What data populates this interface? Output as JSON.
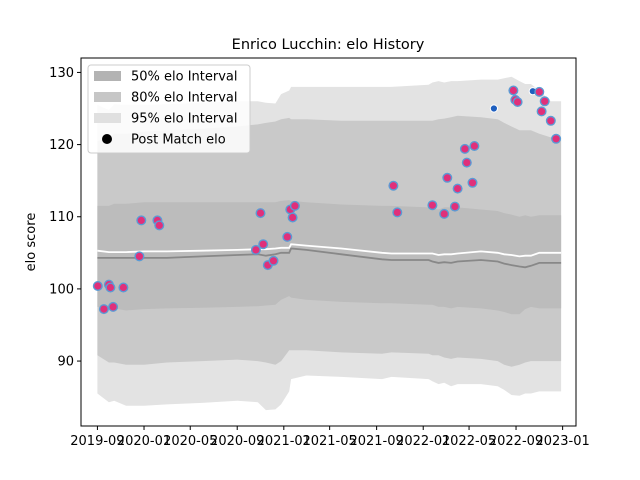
{
  "chart_data": {
    "type": "scatter",
    "title": "Enrico Lucchin: elo History",
    "xlabel": "",
    "ylabel": "elo score",
    "xlim": [
      "2019-07-20",
      "2023-02-05"
    ],
    "ylim": [
      81,
      132
    ],
    "x_ticks": [
      "2019-09",
      "2020-01",
      "2020-05",
      "2020-09",
      "2021-01",
      "2021-05",
      "2021-09",
      "2022-01",
      "2022-05",
      "2022-09",
      "2023-01"
    ],
    "y_ticks": [
      90,
      100,
      110,
      120,
      130
    ],
    "legend_position": "top-left",
    "legend": [
      {
        "label": "50% elo Interval",
        "color": "#b3b3b3",
        "kind": "patch"
      },
      {
        "label": "80% elo Interval",
        "color": "#c6c6c6",
        "kind": "patch"
      },
      {
        "label": "95% elo Interval",
        "color": "#e0e0e0",
        "kind": "patch"
      },
      {
        "label": "Post Match elo",
        "color": "#000000",
        "kind": "marker"
      }
    ],
    "colors": {
      "band95": "#e3e3e3",
      "band80": "#c9c9c9",
      "band50": "#bcbcbc",
      "median": "#888888",
      "mean": "#ffffff",
      "marker_face": "#e0307a",
      "marker_edge": "#5b9bd5",
      "marker_face_alt": "#1f5fbf"
    },
    "bands": {
      "dates": [
        "2019-09-01",
        "2019-10-01",
        "2019-10-15",
        "2019-11-15",
        "2020-01-01",
        "2020-03-01",
        "2020-06-01",
        "2020-09-01",
        "2020-10-25",
        "2020-11-15",
        "2020-12-10",
        "2020-12-25",
        "2021-01-15",
        "2021-01-20",
        "2021-03-01",
        "2021-06-01",
        "2021-09-15",
        "2021-10-10",
        "2022-01-15",
        "2022-01-25",
        "2022-02-10",
        "2022-02-25",
        "2022-03-15",
        "2022-04-01",
        "2022-06-01",
        "2022-07-15",
        "2022-08-01",
        "2022-08-20",
        "2022-09-10",
        "2022-09-25",
        "2022-10-10",
        "2022-11-01",
        "2022-12-01",
        "2022-12-28"
      ],
      "p95_low": [
        85.5,
        84.3,
        84.5,
        83.8,
        83.8,
        84.0,
        84.2,
        84.5,
        84.3,
        83.2,
        83.3,
        84.0,
        85.8,
        87.5,
        88.0,
        87.8,
        87.5,
        87.8,
        87.5,
        87.2,
        86.8,
        87.0,
        86.5,
        86.8,
        86.8,
        86.5,
        86.0,
        85.3,
        85.2,
        85.5,
        85.5,
        85.8,
        85.8,
        85.8
      ],
      "p95_high": [
        125.5,
        124.8,
        125.6,
        125.5,
        125.5,
        125.6,
        125.8,
        126.0,
        126.0,
        125.8,
        125.7,
        127.0,
        127.5,
        128.0,
        128.0,
        128.0,
        128.0,
        128.0,
        128.3,
        128.6,
        128.8,
        128.6,
        128.8,
        128.8,
        129.0,
        129.0,
        129.2,
        129.4,
        128.8,
        128.4,
        128.4,
        127.5,
        126.0,
        126.0
      ],
      "p80_low": [
        90.8,
        89.8,
        89.8,
        89.5,
        89.5,
        89.8,
        90.0,
        90.2,
        90.0,
        89.8,
        89.5,
        90.0,
        91.5,
        91.5,
        91.5,
        91.2,
        91.0,
        91.2,
        91.0,
        90.8,
        90.8,
        90.5,
        90.3,
        90.5,
        90.3,
        90.0,
        89.5,
        89.2,
        89.5,
        89.8,
        90.0,
        90.0,
        90.0,
        90.0
      ],
      "p80_high": [
        120.5,
        120.8,
        121.5,
        121.5,
        121.8,
        122.0,
        122.2,
        122.5,
        122.8,
        123.0,
        123.2,
        123.5,
        123.7,
        123.5,
        123.5,
        123.3,
        123.3,
        123.3,
        123.3,
        123.3,
        123.5,
        123.6,
        123.8,
        124.0,
        123.8,
        123.5,
        123.0,
        122.5,
        122.0,
        122.0,
        122.0,
        121.5,
        121.0,
        121.0
      ],
      "p50_low": [
        97.5,
        97.3,
        97.3,
        97.0,
        97.2,
        97.3,
        97.4,
        97.5,
        97.6,
        97.7,
        97.8,
        98.5,
        99.0,
        98.8,
        98.5,
        98.2,
        98.0,
        98.0,
        97.8,
        97.8,
        97.5,
        97.5,
        97.3,
        97.5,
        97.3,
        97.0,
        96.8,
        96.5,
        96.5,
        97.2,
        97.5,
        97.3,
        97.3,
        97.3
      ],
      "p50_high": [
        111.5,
        111.5,
        111.8,
        111.8,
        112.0,
        112.0,
        112.0,
        112.0,
        112.0,
        112.0,
        112.0,
        112.2,
        112.3,
        112.2,
        112.0,
        111.7,
        111.5,
        111.5,
        111.3,
        111.2,
        111.0,
        111.3,
        111.3,
        111.3,
        111.0,
        110.8,
        110.5,
        110.3,
        110.0,
        110.2,
        110.0,
        110.2,
        110.2,
        110.2
      ],
      "median": [
        104.3,
        104.3,
        104.3,
        104.3,
        104.3,
        104.3,
        104.5,
        104.7,
        104.8,
        104.6,
        104.8,
        105.0,
        105.0,
        105.6,
        105.4,
        104.8,
        104.1,
        104.0,
        104.0,
        103.8,
        103.6,
        103.7,
        103.6,
        103.8,
        104.0,
        103.8,
        103.5,
        103.3,
        103.1,
        103.0,
        103.2,
        103.6,
        103.6,
        103.6
      ],
      "mean": [
        105.3,
        105.1,
        105.1,
        105.1,
        105.2,
        105.2,
        105.3,
        105.4,
        105.5,
        105.5,
        105.6,
        105.7,
        105.7,
        106.2,
        106.0,
        105.6,
        105.0,
        104.9,
        104.9,
        104.9,
        104.7,
        104.8,
        104.8,
        104.9,
        105.2,
        105.0,
        104.8,
        104.7,
        104.5,
        104.6,
        104.6,
        105.0,
        105.0,
        105.0
      ]
    },
    "points": [
      {
        "x": "2019-09-02",
        "y": 100.4
      },
      {
        "x": "2019-09-18",
        "y": 97.2
      },
      {
        "x": "2019-10-01",
        "y": 100.6
      },
      {
        "x": "2019-10-05",
        "y": 100.2
      },
      {
        "x": "2019-10-12",
        "y": 97.5
      },
      {
        "x": "2019-11-08",
        "y": 100.2
      },
      {
        "x": "2019-12-20",
        "y": 104.5
      },
      {
        "x": "2019-12-25",
        "y": 109.5
      },
      {
        "x": "2020-02-05",
        "y": 109.5
      },
      {
        "x": "2020-02-10",
        "y": 108.8
      },
      {
        "x": "2020-10-20",
        "y": 105.4
      },
      {
        "x": "2020-11-01",
        "y": 110.5
      },
      {
        "x": "2020-11-08",
        "y": 106.2
      },
      {
        "x": "2020-11-20",
        "y": 103.3
      },
      {
        "x": "2020-12-05",
        "y": 103.9
      },
      {
        "x": "2021-01-10",
        "y": 107.2
      },
      {
        "x": "2021-01-18",
        "y": 111.0
      },
      {
        "x": "2021-01-24",
        "y": 109.9
      },
      {
        "x": "2021-01-30",
        "y": 111.5
      },
      {
        "x": "2021-10-15",
        "y": 114.3
      },
      {
        "x": "2021-10-25",
        "y": 110.6
      },
      {
        "x": "2022-01-25",
        "y": 111.6
      },
      {
        "x": "2022-02-25",
        "y": 110.4
      },
      {
        "x": "2022-03-05",
        "y": 115.4
      },
      {
        "x": "2022-03-25",
        "y": 111.4
      },
      {
        "x": "2022-04-01",
        "y": 113.9
      },
      {
        "x": "2022-04-20",
        "y": 119.4
      },
      {
        "x": "2022-04-25",
        "y": 117.5
      },
      {
        "x": "2022-05-10",
        "y": 114.7
      },
      {
        "x": "2022-05-15",
        "y": 119.8
      },
      {
        "x": "2022-07-05",
        "y": 125.0,
        "alt": true
      },
      {
        "x": "2022-08-25",
        "y": 127.5
      },
      {
        "x": "2022-08-30",
        "y": 126.2
      },
      {
        "x": "2022-09-05",
        "y": 125.9
      },
      {
        "x": "2022-10-15",
        "y": 127.4,
        "alt": true
      },
      {
        "x": "2022-11-01",
        "y": 127.3
      },
      {
        "x": "2022-11-07",
        "y": 124.6
      },
      {
        "x": "2022-11-15",
        "y": 126.0
      },
      {
        "x": "2022-12-01",
        "y": 123.3
      },
      {
        "x": "2022-12-15",
        "y": 120.8
      }
    ]
  }
}
